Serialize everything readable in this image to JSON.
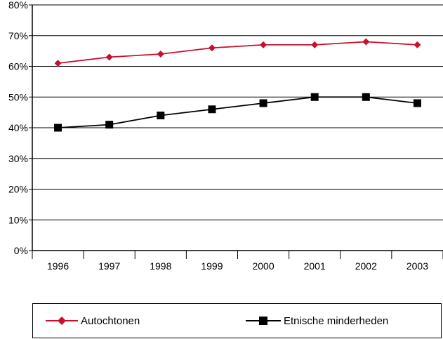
{
  "chart_data": {
    "type": "line",
    "categories": [
      "1996",
      "1997",
      "1998",
      "1999",
      "2000",
      "2001",
      "2002",
      "2003"
    ],
    "series": [
      {
        "name": "Autochtonen",
        "values": [
          61,
          63,
          64,
          66,
          67,
          67,
          68,
          67
        ],
        "color": "#c8102e",
        "marker": "diamond"
      },
      {
        "name": "Etnische minderheden",
        "values": [
          40,
          41,
          44,
          46,
          48,
          50,
          50,
          48
        ],
        "color": "#000000",
        "marker": "square"
      }
    ],
    "yticks": [
      "0%",
      "10%",
      "20%",
      "30%",
      "40%",
      "50%",
      "60%",
      "70%",
      "80%"
    ],
    "ylim": [
      0,
      80
    ],
    "grid": true,
    "legend_position": "bottom"
  }
}
